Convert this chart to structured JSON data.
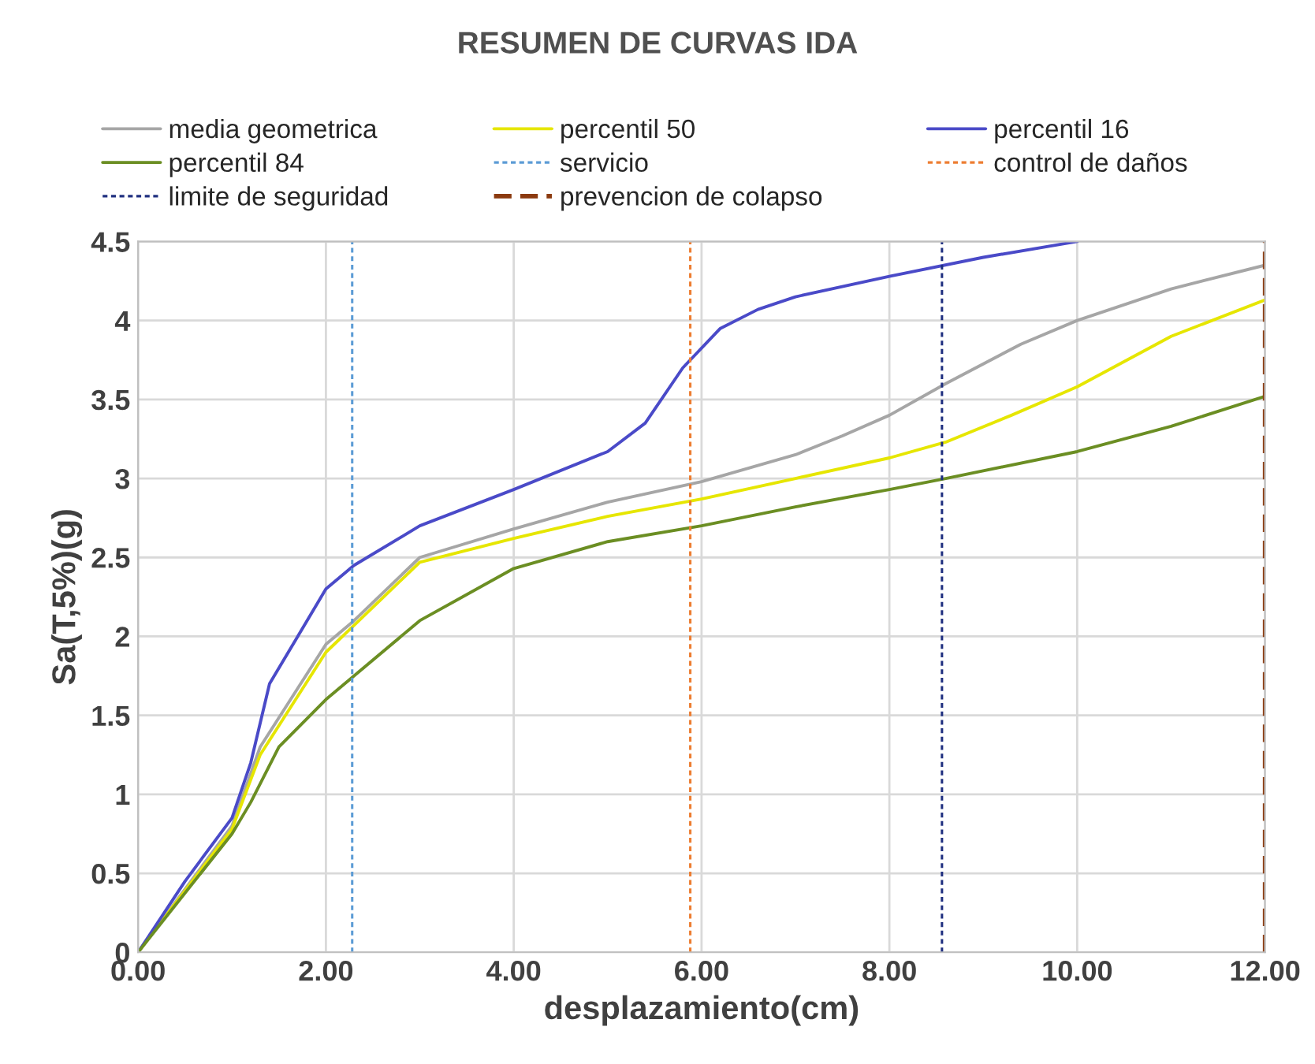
{
  "chart_data": {
    "type": "line",
    "title": "RESUMEN DE CURVAS IDA",
    "xlabel": "desplazamiento(cm)",
    "ylabel": "Sa(T,5%)(g)",
    "series": [
      {
        "name": "media geometrica",
        "color": "#a6a6a6",
        "x": [
          0,
          1,
          1.3,
          2,
          2.3,
          3,
          4,
          5,
          6,
          7,
          7.5,
          8,
          8.6,
          9.4,
          10,
          11,
          12
        ],
        "values": [
          0,
          0.8,
          1.3,
          1.95,
          2.1,
          2.5,
          2.68,
          2.85,
          2.98,
          3.15,
          3.27,
          3.4,
          3.6,
          3.85,
          4.0,
          4.2,
          4.35
        ]
      },
      {
        "name": "percentil 50",
        "color": "#e6e600",
        "x": [
          0,
          1,
          1.3,
          2,
          2.3,
          3,
          4,
          5,
          6,
          7,
          8,
          8.6,
          9.3,
          10,
          11,
          12
        ],
        "values": [
          0,
          0.78,
          1.25,
          1.9,
          2.07,
          2.47,
          2.62,
          2.76,
          2.87,
          3.0,
          3.13,
          3.23,
          3.4,
          3.58,
          3.9,
          4.13
        ]
      },
      {
        "name": "percentil 16",
        "color": "#4a4ac8",
        "x": [
          0,
          0.5,
          1,
          1.2,
          1.4,
          1.7,
          2,
          2.3,
          3,
          4,
          5,
          5.4,
          5.8,
          6.2,
          6.6,
          7,
          8,
          9,
          10
        ],
        "values": [
          0,
          0.45,
          0.85,
          1.2,
          1.7,
          2.0,
          2.3,
          2.45,
          2.7,
          2.93,
          3.17,
          3.35,
          3.7,
          3.95,
          4.07,
          4.15,
          4.28,
          4.4,
          4.5
        ]
      },
      {
        "name": "percentil 84",
        "color": "#6b8e23",
        "x": [
          0,
          1,
          1.2,
          1.5,
          2,
          2.3,
          3,
          4,
          5,
          6,
          7,
          8,
          8.6,
          10,
          11,
          12
        ],
        "values": [
          0,
          0.75,
          0.95,
          1.3,
          1.6,
          1.75,
          2.1,
          2.43,
          2.6,
          2.7,
          2.82,
          2.93,
          3.0,
          3.17,
          3.33,
          3.52
        ]
      }
    ],
    "ref_lines": [
      {
        "axis": "x",
        "value": 2.28,
        "label": "servicio",
        "color": "#5b9bd5",
        "line_style": "dotted"
      },
      {
        "axis": "x",
        "value": 5.88,
        "label": "control de daños",
        "color": "#ed7d31",
        "line_style": "dotted"
      },
      {
        "axis": "x",
        "value": 8.56,
        "label": "limite de seguridad",
        "color": "#203080",
        "line_style": "dotted"
      },
      {
        "axis": "x",
        "value": 12,
        "label": "prevencion de colapso",
        "color": "#8b3a0f",
        "line_style": "dashed"
      }
    ],
    "xlim": [
      0,
      12
    ],
    "xticks": [
      {
        "value": 0,
        "label": "0.00"
      },
      {
        "value": 2,
        "label": "2.00"
      },
      {
        "value": 4,
        "label": "4.00"
      },
      {
        "value": 6,
        "label": "6.00"
      },
      {
        "value": 8,
        "label": "8.00"
      },
      {
        "value": 10,
        "label": "10.00"
      },
      {
        "value": 12,
        "label": "12.00"
      }
    ],
    "ylim": [
      0,
      4.5
    ],
    "yticks": [
      0,
      0.5,
      1,
      1.5,
      2,
      2.5,
      3,
      3.5,
      4,
      4.5
    ],
    "grid": true,
    "legend": "top",
    "marker": "none",
    "line_style": "solid"
  }
}
